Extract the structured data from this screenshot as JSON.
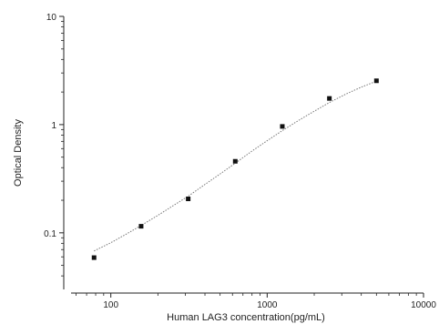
{
  "chart_data": {
    "type": "scatter",
    "title": "",
    "xlabel": "Human LAG3 concentration(pg/mL)",
    "ylabel": "Optical Density",
    "x_scale": "log",
    "y_scale": "log",
    "xlim": [
      50,
      10000
    ],
    "ylim": [
      0.03,
      10
    ],
    "x_ticks": [
      100,
      1000,
      10000
    ],
    "x_tick_labels": [
      "100",
      "1000",
      "10000"
    ],
    "y_ticks": [
      0.1,
      1,
      10
    ],
    "y_tick_labels": [
      "0.1",
      "1",
      "10"
    ],
    "grid": false,
    "legend": "none",
    "series": [
      {
        "x": [
          78.125,
          156.25,
          312.5,
          625,
          1250,
          2500,
          5000
        ],
        "y": [
          0.059,
          0.115,
          0.206,
          0.458,
          0.962,
          1.745,
          2.54
        ]
      }
    ],
    "fit_curve": {
      "style": "dotted",
      "x": [
        78.125,
        100,
        125,
        156.25,
        200,
        250,
        312.5,
        400,
        500,
        625,
        800,
        1000,
        1250,
        1600,
        2000,
        2500,
        3200,
        4000,
        5000
      ],
      "y": [
        0.068,
        0.081,
        0.097,
        0.117,
        0.145,
        0.178,
        0.218,
        0.28,
        0.35,
        0.44,
        0.57,
        0.71,
        0.88,
        1.1,
        1.33,
        1.6,
        1.92,
        2.22,
        2.52
      ]
    },
    "colors": {
      "axis": "#222222",
      "marker": "#111111",
      "curve": "#777777"
    }
  }
}
